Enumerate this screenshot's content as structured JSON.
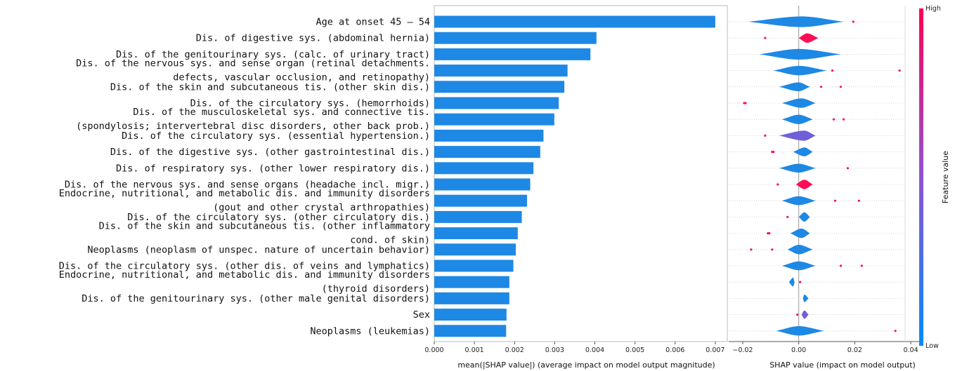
{
  "chart_data": [
    {
      "type": "bar",
      "orientation": "horizontal",
      "xlabel": "mean(|SHAP value|) (average impact on model output magnitude)",
      "xlim": [
        0,
        0.0073
      ],
      "xticks": [
        "0.000",
        "0.001",
        "0.002",
        "0.003",
        "0.004",
        "0.005",
        "0.006",
        "0.007"
      ],
      "xtick_values": [
        0,
        0.001,
        0.002,
        0.003,
        0.004,
        0.005,
        0.006,
        0.007
      ],
      "bar_color": "#1e88e5",
      "categories": [
        [
          "Age at onset 45 – 54"
        ],
        [
          "Dis. of digestive sys. (abdominal hernia)"
        ],
        [
          "Dis. of the genitourinary sys. (calc. of urinary tract)"
        ],
        [
          "Dis. of the nervous sys. and sense organ (retinal detachments.",
          "defects, vascular occlusion, and retinopathy)"
        ],
        [
          "Dis. of the skin and subcutaneous tis. (other skin dis.)"
        ],
        [
          "Dis. of the circulatory sys. (hemorrhoids)"
        ],
        [
          "Dis. of the musculoskeletal sys. and connective tis.",
          "(spondylosis; intervertebral disc disorders, other back prob.)"
        ],
        [
          "Dis. of the circulatory sys. (essential hypertension.)"
        ],
        [
          "Dis. of the digestive sys. (other gastrointestinal dis.)"
        ],
        [
          "Dis. of respiratory sys. (other lower respiratory dis.)"
        ],
        [
          "Dis. of the nervous sys. and sense organs (headache incl. migr.)"
        ],
        [
          "Endocrine, nutritional, and metabolic dis. and immunity disorders",
          "(gout and other crystal arthropathies)"
        ],
        [
          "Dis. of the circulatory sys. (other circulatory dis.)"
        ],
        [
          "Dis. of the skin and subcutaneous tis. (other inflammatory",
          "cond. of skin)"
        ],
        [
          "Neoplasms (neoplasm of unspec. nature of uncertain behavior)"
        ],
        [
          "Dis. of the circulatory sys. (other dis. of veins and lymphatics)"
        ],
        [
          "Endocrine, nutritional, and metabolic dis. and immunity disorders",
          "(thyroid disorders)"
        ],
        [
          "Dis. of the genitourinary sys. (other male genital disorders)"
        ],
        [
          "Sex"
        ],
        [
          "Neoplasms (leukemias)"
        ]
      ],
      "values": [
        0.007,
        0.00404,
        0.00389,
        0.00332,
        0.00324,
        0.0031,
        0.00299,
        0.00272,
        0.00264,
        0.00247,
        0.00239,
        0.00231,
        0.00218,
        0.00208,
        0.00203,
        0.00197,
        0.00187,
        0.00187,
        0.0018,
        0.00179
      ]
    },
    {
      "type": "violin",
      "xlabel": "SHAP value (impact on model output)",
      "xlim": [
        -0.025,
        0.044
      ],
      "xticks": [
        "−0.02",
        "0.00",
        "0.02",
        "0.04"
      ],
      "xtick_values": [
        -0.02,
        0,
        0.02,
        0.04
      ],
      "colorbar": {
        "label": "Feature value",
        "high": "High",
        "low": "Low",
        "high_color": "#ff0052",
        "low_color": "#008bfb",
        "mid_color": "#8f53d2"
      },
      "violins": [
        {
          "center": 0.001,
          "left": -0.018,
          "right": 0.016,
          "height": 0.85,
          "color": "#1e88e5"
        },
        {
          "center": 0.003,
          "left": 0.0,
          "right": 0.007,
          "height": 0.75,
          "color": "#ff0d57"
        },
        {
          "center": 0.0,
          "left": -0.014,
          "right": 0.015,
          "height": 0.85,
          "color": "#1e88e5"
        },
        {
          "center": 0.0,
          "left": -0.009,
          "right": 0.01,
          "height": 0.75,
          "color": "#1e88e5"
        },
        {
          "center": 0.0,
          "left": -0.007,
          "right": 0.004,
          "height": 0.7,
          "color": "#1e88e5"
        },
        {
          "center": 0.001,
          "left": -0.006,
          "right": 0.006,
          "height": 0.75,
          "color": "#1e88e5"
        },
        {
          "center": 0.0,
          "left": -0.006,
          "right": 0.005,
          "height": 0.75,
          "color": "#1e88e5"
        },
        {
          "center": 0.002,
          "left": -0.007,
          "right": 0.006,
          "height": 0.8,
          "color": "#6f5fd8"
        },
        {
          "center": 0.002,
          "left": -0.002,
          "right": 0.005,
          "height": 0.7,
          "color": "#1e88e5"
        },
        {
          "center": 0.0,
          "left": -0.007,
          "right": 0.006,
          "height": 0.7,
          "color": "#1e88e5"
        },
        {
          "center": 0.002,
          "left": -0.001,
          "right": 0.005,
          "height": 0.75,
          "color": "#ff0d57"
        },
        {
          "center": 0.0,
          "left": -0.006,
          "right": 0.006,
          "height": 0.7,
          "color": "#1e88e5"
        },
        {
          "center": 0.002,
          "left": 0.0,
          "right": 0.004,
          "height": 0.75,
          "color": "#1e88e5"
        },
        {
          "center": 0.001,
          "left": -0.003,
          "right": 0.004,
          "height": 0.75,
          "color": "#1e88e5"
        },
        {
          "center": 0.0,
          "left": -0.004,
          "right": 0.005,
          "height": 0.75,
          "color": "#1e88e5"
        },
        {
          "center": 0.0,
          "left": -0.006,
          "right": 0.006,
          "height": 0.7,
          "color": "#1e88e5"
        },
        {
          "center": -0.002,
          "left": -0.0035,
          "right": -0.0015,
          "height": 0.7,
          "color": "#1e88e5"
        },
        {
          "center": 0.002,
          "left": 0.0015,
          "right": 0.0035,
          "height": 0.6,
          "color": "#1e88e5"
        },
        {
          "center": 0.002,
          "left": 0.001,
          "right": 0.0035,
          "height": 0.65,
          "color": "#6f5fd8"
        },
        {
          "center": 0.0,
          "left": -0.008,
          "right": 0.009,
          "height": 0.75,
          "color": "#1e88e5"
        }
      ],
      "outliers": [
        [
          0.0195
        ],
        [
          -0.012
        ],
        [],
        [
          0.012,
          0.036
        ],
        [
          0.008,
          0.015
        ],
        [
          -0.019,
          -0.0195
        ],
        [
          0.0125,
          0.016
        ],
        [
          -0.012
        ],
        [
          -0.009,
          -0.0095
        ],
        [
          0.0175
        ],
        [
          -0.0075
        ],
        [
          0.013,
          0.0215
        ],
        [
          -0.004
        ],
        [
          -0.011,
          -0.0105
        ],
        [
          -0.017,
          -0.0095
        ],
        [
          0.015,
          0.0225
        ],
        [
          0.0005
        ],
        [],
        [
          -0.0005
        ],
        [
          0.0345
        ]
      ]
    }
  ]
}
